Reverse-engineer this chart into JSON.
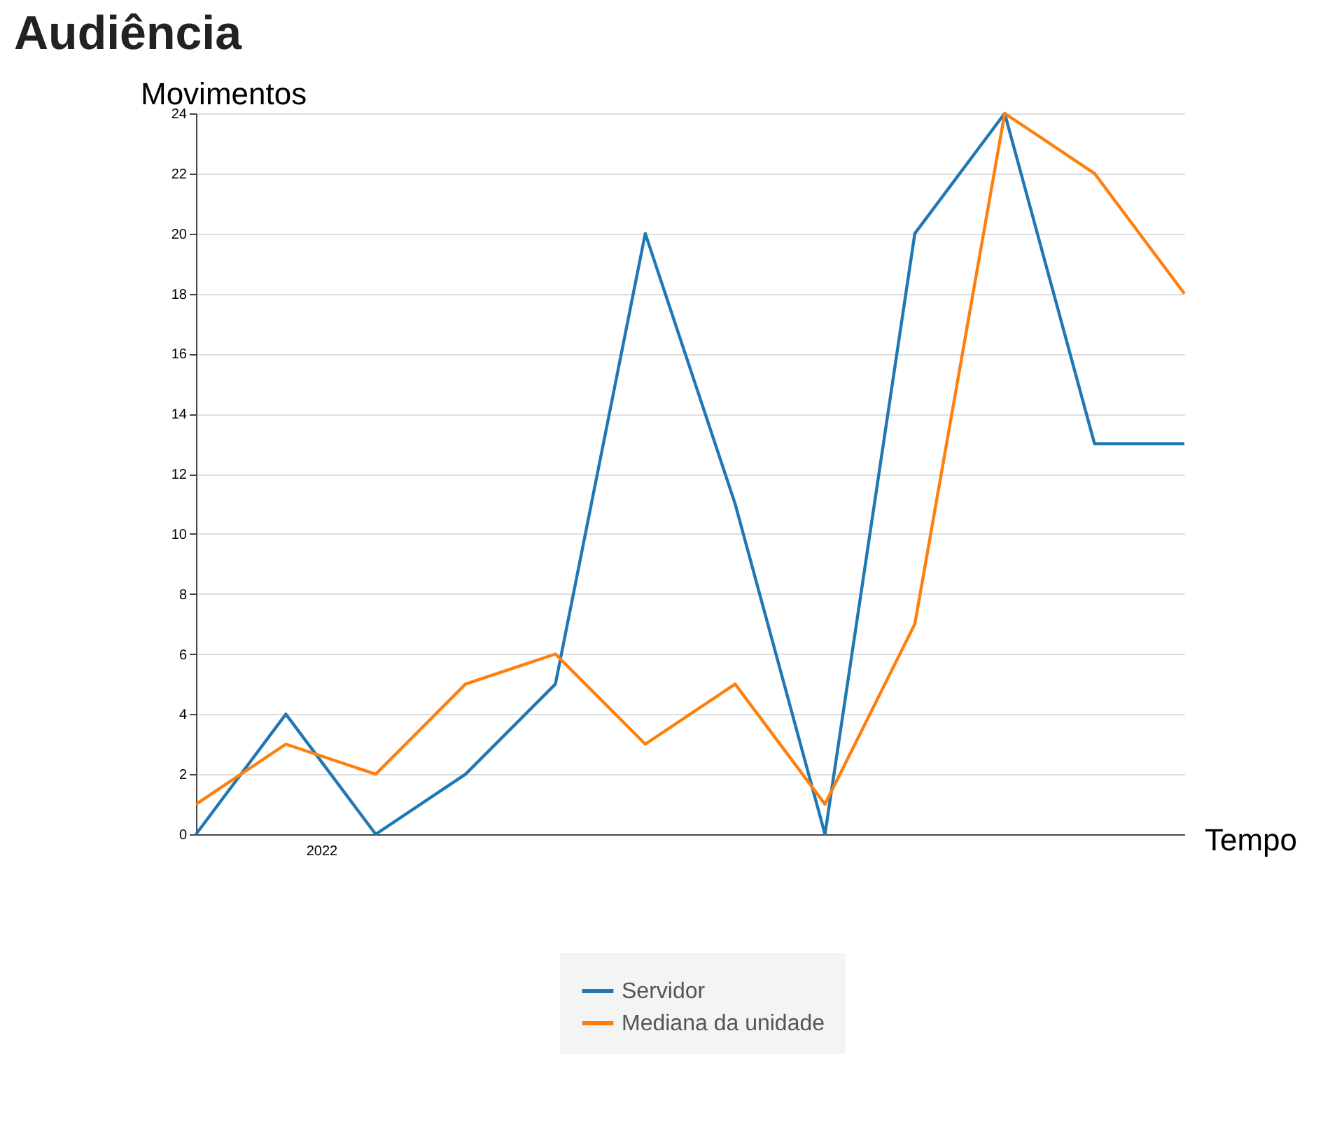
{
  "chart_data": {
    "type": "line",
    "title": "Audiência",
    "xlabel": "Tempo",
    "ylabel": "Movimentos",
    "categories": [
      null,
      null,
      null,
      null,
      null,
      null,
      null,
      null,
      null,
      null,
      null,
      null
    ],
    "series": [
      {
        "name": "Servidor",
        "color": "#1f77b4",
        "values": [
          0,
          4,
          0,
          2,
          5,
          20,
          11,
          0,
          20,
          24,
          13,
          13
        ]
      },
      {
        "name": "Mediana da unidade",
        "color": "#ff7f0e",
        "values": [
          1,
          3,
          2,
          5,
          6,
          3,
          5,
          1,
          7,
          24,
          22,
          18
        ]
      }
    ],
    "ylim": [
      0,
      24
    ],
    "yticks": [
      0,
      2,
      4,
      6,
      8,
      10,
      12,
      14,
      16,
      18,
      20,
      22,
      24
    ],
    "annotations": [
      "2022"
    ],
    "grid": "y",
    "legend": "bottom",
    "line_style": "solid"
  }
}
